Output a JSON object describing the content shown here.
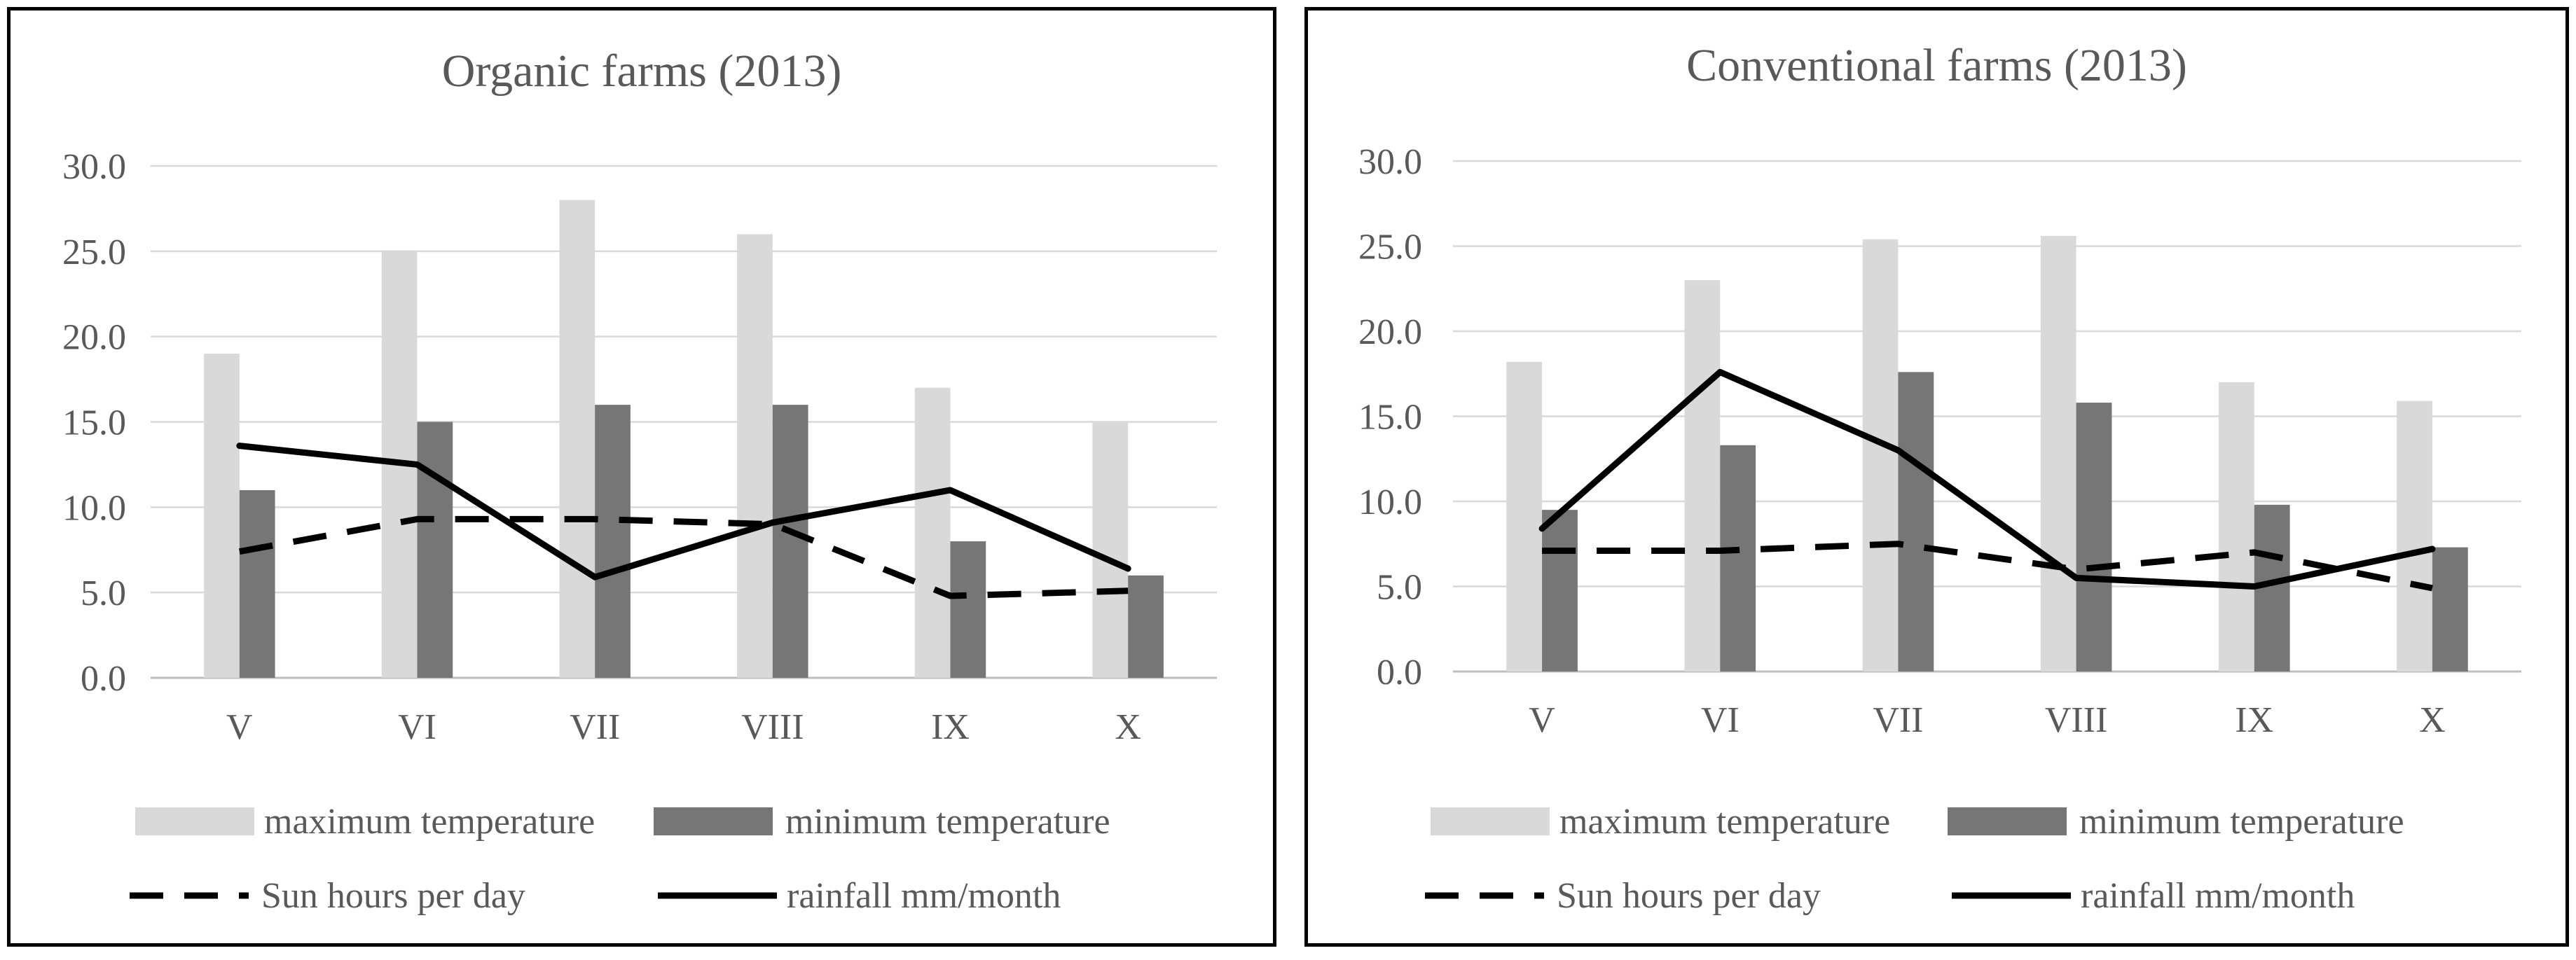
{
  "chart_data": [
    {
      "type": "bar",
      "title": "Organic farms (2013)",
      "categories": [
        "V",
        "VI",
        "VII",
        "VIII",
        "IX",
        "X"
      ],
      "ylim": [
        0,
        30
      ],
      "yticks": [
        "0.0",
        "5.0",
        "10.0",
        "15.0",
        "20.0",
        "25.0",
        "30.0"
      ],
      "grid": true,
      "legend_position": "bottom",
      "series": [
        {
          "name": "maximum temperature",
          "kind": "bar",
          "color": "#d9d9d9",
          "values": [
            19.0,
            25.0,
            28.0,
            26.0,
            17.0,
            15.0
          ]
        },
        {
          "name": "minimum temperature",
          "kind": "bar",
          "color": "#767676",
          "values": [
            11.0,
            15.0,
            16.0,
            16.0,
            8.0,
            6.0
          ]
        },
        {
          "name": "Sun hours per day",
          "kind": "line",
          "style": "dashed",
          "color": "#000000",
          "values": [
            7.4,
            9.3,
            9.3,
            9.0,
            4.8,
            5.1
          ]
        },
        {
          "name": "rainfall mm/month",
          "kind": "line",
          "style": "solid",
          "color": "#000000",
          "values": [
            13.6,
            12.5,
            5.9,
            9.1,
            11.0,
            6.4
          ]
        }
      ]
    },
    {
      "type": "bar",
      "title": "Conventional farms (2013)",
      "categories": [
        "V",
        "VI",
        "VII",
        "VIII",
        "IX",
        "X"
      ],
      "ylim": [
        0,
        30
      ],
      "yticks": [
        "0.0",
        "5.0",
        "10.0",
        "15.0",
        "20.0",
        "25.0",
        "30.0"
      ],
      "grid": true,
      "legend_position": "bottom",
      "series": [
        {
          "name": "maximum temperature",
          "kind": "bar",
          "color": "#d9d9d9",
          "values": [
            18.2,
            23.0,
            25.4,
            25.6,
            17.0,
            15.9
          ]
        },
        {
          "name": "minimum temperature",
          "kind": "bar",
          "color": "#767676",
          "values": [
            9.5,
            13.3,
            17.6,
            15.8,
            9.8,
            7.3
          ]
        },
        {
          "name": "Sun hours per day",
          "kind": "line",
          "style": "dashed",
          "color": "#000000",
          "values": [
            7.1,
            7.1,
            7.5,
            6.0,
            7.0,
            4.9
          ]
        },
        {
          "name": "rainfall mm/month",
          "kind": "line",
          "style": "solid",
          "color": "#000000",
          "values": [
            8.4,
            17.6,
            13.0,
            5.5,
            5.0,
            7.2
          ]
        }
      ]
    }
  ]
}
